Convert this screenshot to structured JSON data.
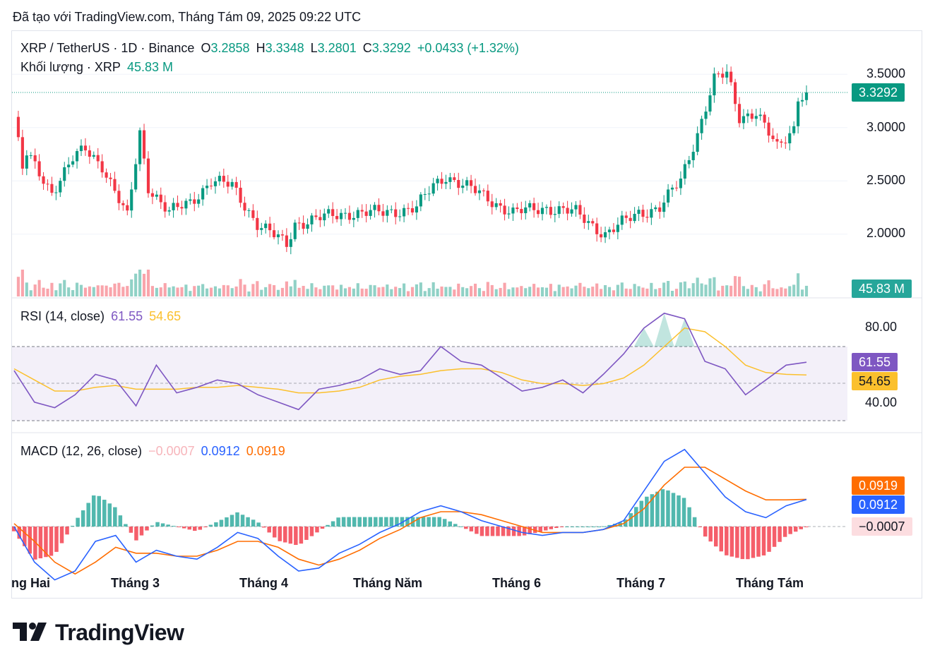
{
  "caption": "Đã tạo với TradingView.com, Tháng Tám 09, 2025 09:22 UTC",
  "legend": {
    "symbol": "XRP / TetherUS · 1D · Binance",
    "o_label": "O",
    "o_value": "3.2858",
    "h_label": "H",
    "h_value": "3.3348",
    "l_label": "L",
    "l_value": "3.2801",
    "c_label": "C",
    "c_value": "3.3292",
    "change": "+0.0433 (+1.32%)",
    "volume_label": "Khối lượng · XRP",
    "volume_value": "45.83 M"
  },
  "rsi_legend": {
    "label": "RSI (14, close)",
    "rsi": "61.55",
    "ma": "54.65"
  },
  "macd_legend": {
    "label": "MACD (12, 26, close)",
    "hist": "−0.0007",
    "macd": "0.0912",
    "signal": "0.0919"
  },
  "price_axis": [
    "3.5000",
    "3.0000",
    "2.5000",
    "2.0000"
  ],
  "rsi_axis": [
    "80.00",
    "40.00"
  ],
  "tags": {
    "price": "3.3292",
    "volume": "45.83 M",
    "rsi": "61.55",
    "rsi_ma": "54.65",
    "signal": "0.0919",
    "macd": "0.0912",
    "hist": "−0.0007"
  },
  "months": [
    "ng Hai",
    "Tháng 3",
    "Tháng 4",
    "Tháng Năm",
    "Tháng 6",
    "Tháng 7",
    "Tháng Tám"
  ],
  "brand": "TradingView",
  "colors": {
    "up": "#089981",
    "down": "#f23645",
    "rsi": "#7e57c2",
    "rsi_ma": "#fbc02d",
    "macd": "#2962ff",
    "signal": "#ff6d00"
  },
  "chart_data": [
    {
      "type": "candlestick",
      "title": "XRP / TetherUS · 1D · Binance",
      "ylim": [
        1.6,
        3.75
      ],
      "months": [
        "Tháng Hai",
        "Tháng 3",
        "Tháng 4",
        "Tháng Năm",
        "Tháng 6",
        "Tháng 7",
        "Tháng Tám"
      ],
      "close_points": [
        [
          "2025-02-01",
          3.1
        ],
        [
          "2025-02-03",
          2.6
        ],
        [
          "2025-02-04",
          2.75
        ],
        [
          "2025-02-10",
          2.4
        ],
        [
          "2025-02-15",
          2.7
        ],
        [
          "2025-02-18",
          2.8
        ],
        [
          "2025-02-22",
          2.65
        ],
        [
          "2025-02-28",
          2.15
        ],
        [
          "2025-03-03",
          2.95
        ],
        [
          "2025-03-05",
          2.45
        ],
        [
          "2025-03-10",
          2.2
        ],
        [
          "2025-03-15",
          2.3
        ],
        [
          "2025-03-20",
          2.5
        ],
        [
          "2025-03-25",
          2.45
        ],
        [
          "2025-03-31",
          2.1
        ],
        [
          "2025-04-07",
          1.9
        ],
        [
          "2025-04-09",
          2.1
        ],
        [
          "2025-04-15",
          2.15
        ],
        [
          "2025-04-22",
          2.2
        ],
        [
          "2025-04-30",
          2.2
        ],
        [
          "2025-05-08",
          2.25
        ],
        [
          "2025-05-12",
          2.45
        ],
        [
          "2025-05-15",
          2.55
        ],
        [
          "2025-05-22",
          2.4
        ],
        [
          "2025-05-31",
          2.2
        ],
        [
          "2025-06-08",
          2.25
        ],
        [
          "2025-06-15",
          2.2
        ],
        [
          "2025-06-22",
          2.0
        ],
        [
          "2025-06-30",
          2.2
        ],
        [
          "2025-07-05",
          2.25
        ],
        [
          "2025-07-10",
          2.5
        ],
        [
          "2025-07-14",
          2.95
        ],
        [
          "2025-07-18",
          3.45
        ],
        [
          "2025-07-21",
          3.5
        ],
        [
          "2025-07-24",
          3.1
        ],
        [
          "2025-07-28",
          3.15
        ],
        [
          "2025-08-02",
          2.8
        ],
        [
          "2025-08-06",
          3.0
        ],
        [
          "2025-08-07",
          3.3
        ],
        [
          "2025-08-09",
          3.3292
        ]
      ]
    },
    {
      "type": "bar",
      "title": "Khối lượng · XRP",
      "last": "45.83 M"
    },
    {
      "type": "line",
      "title": "RSI (14, close)",
      "ylim": [
        20,
        100
      ],
      "bands": [
        70,
        50,
        30
      ],
      "series": [
        {
          "name": "RSI",
          "values": [
            57,
            40,
            37,
            44,
            55,
            52,
            38,
            60,
            45,
            48,
            52,
            50,
            44,
            40,
            36,
            47,
            49,
            52,
            58,
            55,
            57,
            70,
            62,
            60,
            53,
            46,
            48,
            52,
            45,
            55,
            66,
            80,
            88,
            85,
            62,
            58,
            44,
            52,
            60,
            61.55
          ]
        },
        {
          "name": "MA",
          "values": [
            58,
            52,
            46,
            46,
            48,
            49,
            47,
            47,
            47,
            48,
            48,
            49,
            48,
            47,
            45,
            45,
            46,
            48,
            52,
            54,
            55,
            57,
            58,
            58,
            56,
            52,
            50,
            50,
            49,
            50,
            53,
            60,
            70,
            80,
            78,
            70,
            60,
            56,
            55,
            54.65
          ]
        }
      ]
    },
    {
      "type": "line",
      "title": "MACD (12, 26, close)",
      "ylim": [
        -0.22,
        0.3
      ],
      "series": [
        {
          "name": "MACD",
          "values": [
            0.0,
            -0.12,
            -0.18,
            -0.15,
            -0.05,
            -0.03,
            -0.12,
            -0.08,
            -0.1,
            -0.11,
            -0.07,
            -0.02,
            -0.04,
            -0.1,
            -0.15,
            -0.14,
            -0.09,
            -0.06,
            -0.02,
            0.01,
            0.05,
            0.07,
            0.05,
            0.02,
            0.0,
            -0.02,
            -0.03,
            -0.02,
            -0.02,
            -0.01,
            0.02,
            0.12,
            0.22,
            0.26,
            0.18,
            0.1,
            0.05,
            0.03,
            0.07,
            0.0912
          ]
        },
        {
          "name": "Signal",
          "values": [
            0.01,
            -0.05,
            -0.12,
            -0.16,
            -0.12,
            -0.07,
            -0.09,
            -0.09,
            -0.1,
            -0.1,
            -0.08,
            -0.05,
            -0.05,
            -0.07,
            -0.11,
            -0.13,
            -0.11,
            -0.08,
            -0.04,
            -0.01,
            0.03,
            0.05,
            0.05,
            0.04,
            0.02,
            0.0,
            -0.02,
            -0.02,
            -0.02,
            -0.01,
            0.01,
            0.06,
            0.14,
            0.2,
            0.2,
            0.16,
            0.12,
            0.09,
            0.09,
            0.0919
          ]
        }
      ]
    }
  ]
}
